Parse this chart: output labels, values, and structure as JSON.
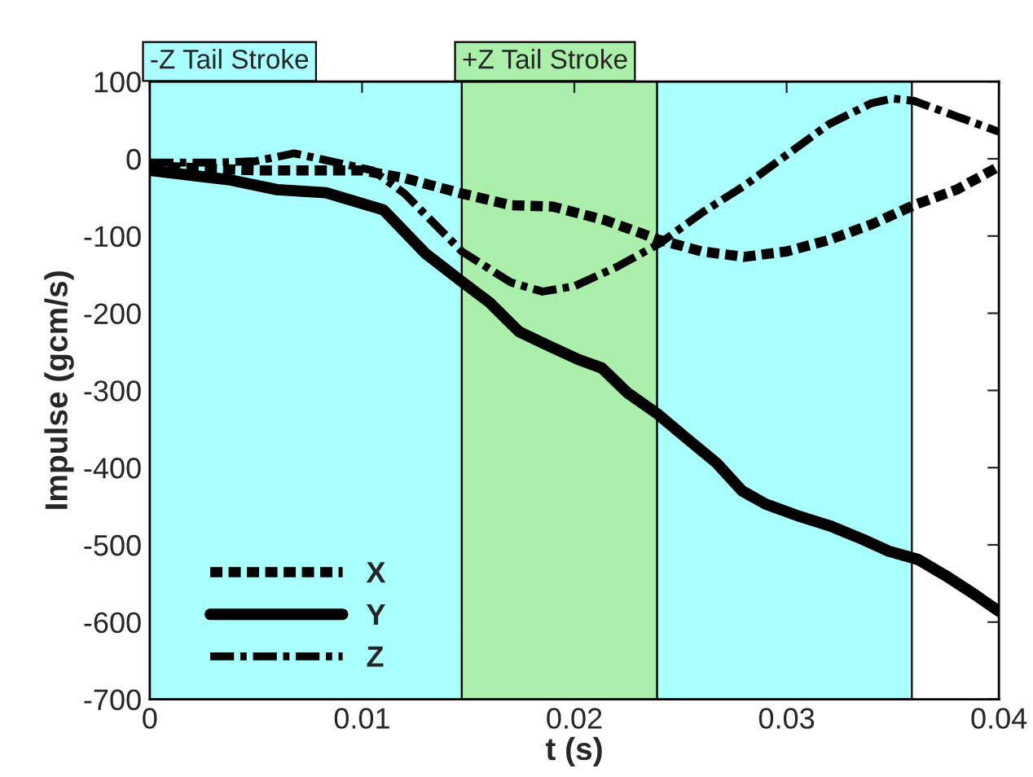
{
  "chart_data": {
    "type": "line",
    "xlabel": "t (s)",
    "ylabel": "Impulse (gcm/s)",
    "xlim": [
      0,
      0.04
    ],
    "ylim": [
      -700,
      100
    ],
    "xticks": [
      0,
      0.01,
      0.02,
      0.03,
      0.04
    ],
    "yticks": [
      -700,
      -600,
      -500,
      -400,
      -300,
      -200,
      -100,
      0,
      100
    ],
    "grid": false,
    "legend": "bottom left",
    "bands": [
      {
        "axis": "x",
        "from": 0,
        "to": 0.0147,
        "label": "-Z Tail Stroke",
        "color": "#aaffff"
      },
      {
        "axis": "x",
        "from": 0.0147,
        "to": 0.0239,
        "label": "+Z Tail Stroke",
        "color": "#aaf0aa"
      },
      {
        "axis": "x",
        "from": 0.0239,
        "to": 0.0359,
        "label": null,
        "color": "#aaffff"
      }
    ],
    "series": [
      {
        "name": "X",
        "color": "#000000",
        "line_style": "dashed",
        "x": [
          0,
          0.005,
          0.01,
          0.012,
          0.0147,
          0.017,
          0.019,
          0.0215,
          0.024,
          0.026,
          0.028,
          0.03,
          0.032,
          0.034,
          0.036,
          0.038,
          0.04
        ],
        "values": [
          -10,
          -15,
          -15,
          -25,
          -45,
          -60,
          -62,
          -80,
          -105,
          -120,
          -127,
          -120,
          -105,
          -85,
          -60,
          -40,
          -10
        ]
      },
      {
        "name": "Y",
        "color": "#000000",
        "line_style": "solid",
        "x": [
          0,
          0.0037,
          0.006,
          0.0083,
          0.011,
          0.013,
          0.0147,
          0.016,
          0.0174,
          0.0187,
          0.0202,
          0.0213,
          0.0225,
          0.0239,
          0.0252,
          0.0267,
          0.0279,
          0.029,
          0.0306,
          0.0321,
          0.0336,
          0.0348,
          0.0362,
          0.0375,
          0.0389,
          0.04
        ],
        "values": [
          -15,
          -27,
          -40,
          -44,
          -66,
          -123,
          -159,
          -186,
          -224,
          -241,
          -260,
          -271,
          -303,
          -330,
          -360,
          -394,
          -430,
          -447,
          -463,
          -476,
          -493,
          -508,
          -519,
          -540,
          -565,
          -586
        ]
      },
      {
        "name": "Z",
        "color": "#000000",
        "line_style": "dashdot",
        "x": [
          0,
          0.003,
          0.005,
          0.0068,
          0.008,
          0.0105,
          0.012,
          0.0147,
          0.017,
          0.0185,
          0.02,
          0.022,
          0.024,
          0.026,
          0.028,
          0.03,
          0.032,
          0.034,
          0.035,
          0.036,
          0.038,
          0.04
        ],
        "values": [
          -5,
          -5,
          -3,
          7,
          0,
          -15,
          -45,
          -120,
          -160,
          -172,
          -165,
          -140,
          -110,
          -70,
          -35,
          5,
          45,
          72,
          78,
          75,
          55,
          35
        ]
      }
    ]
  }
}
